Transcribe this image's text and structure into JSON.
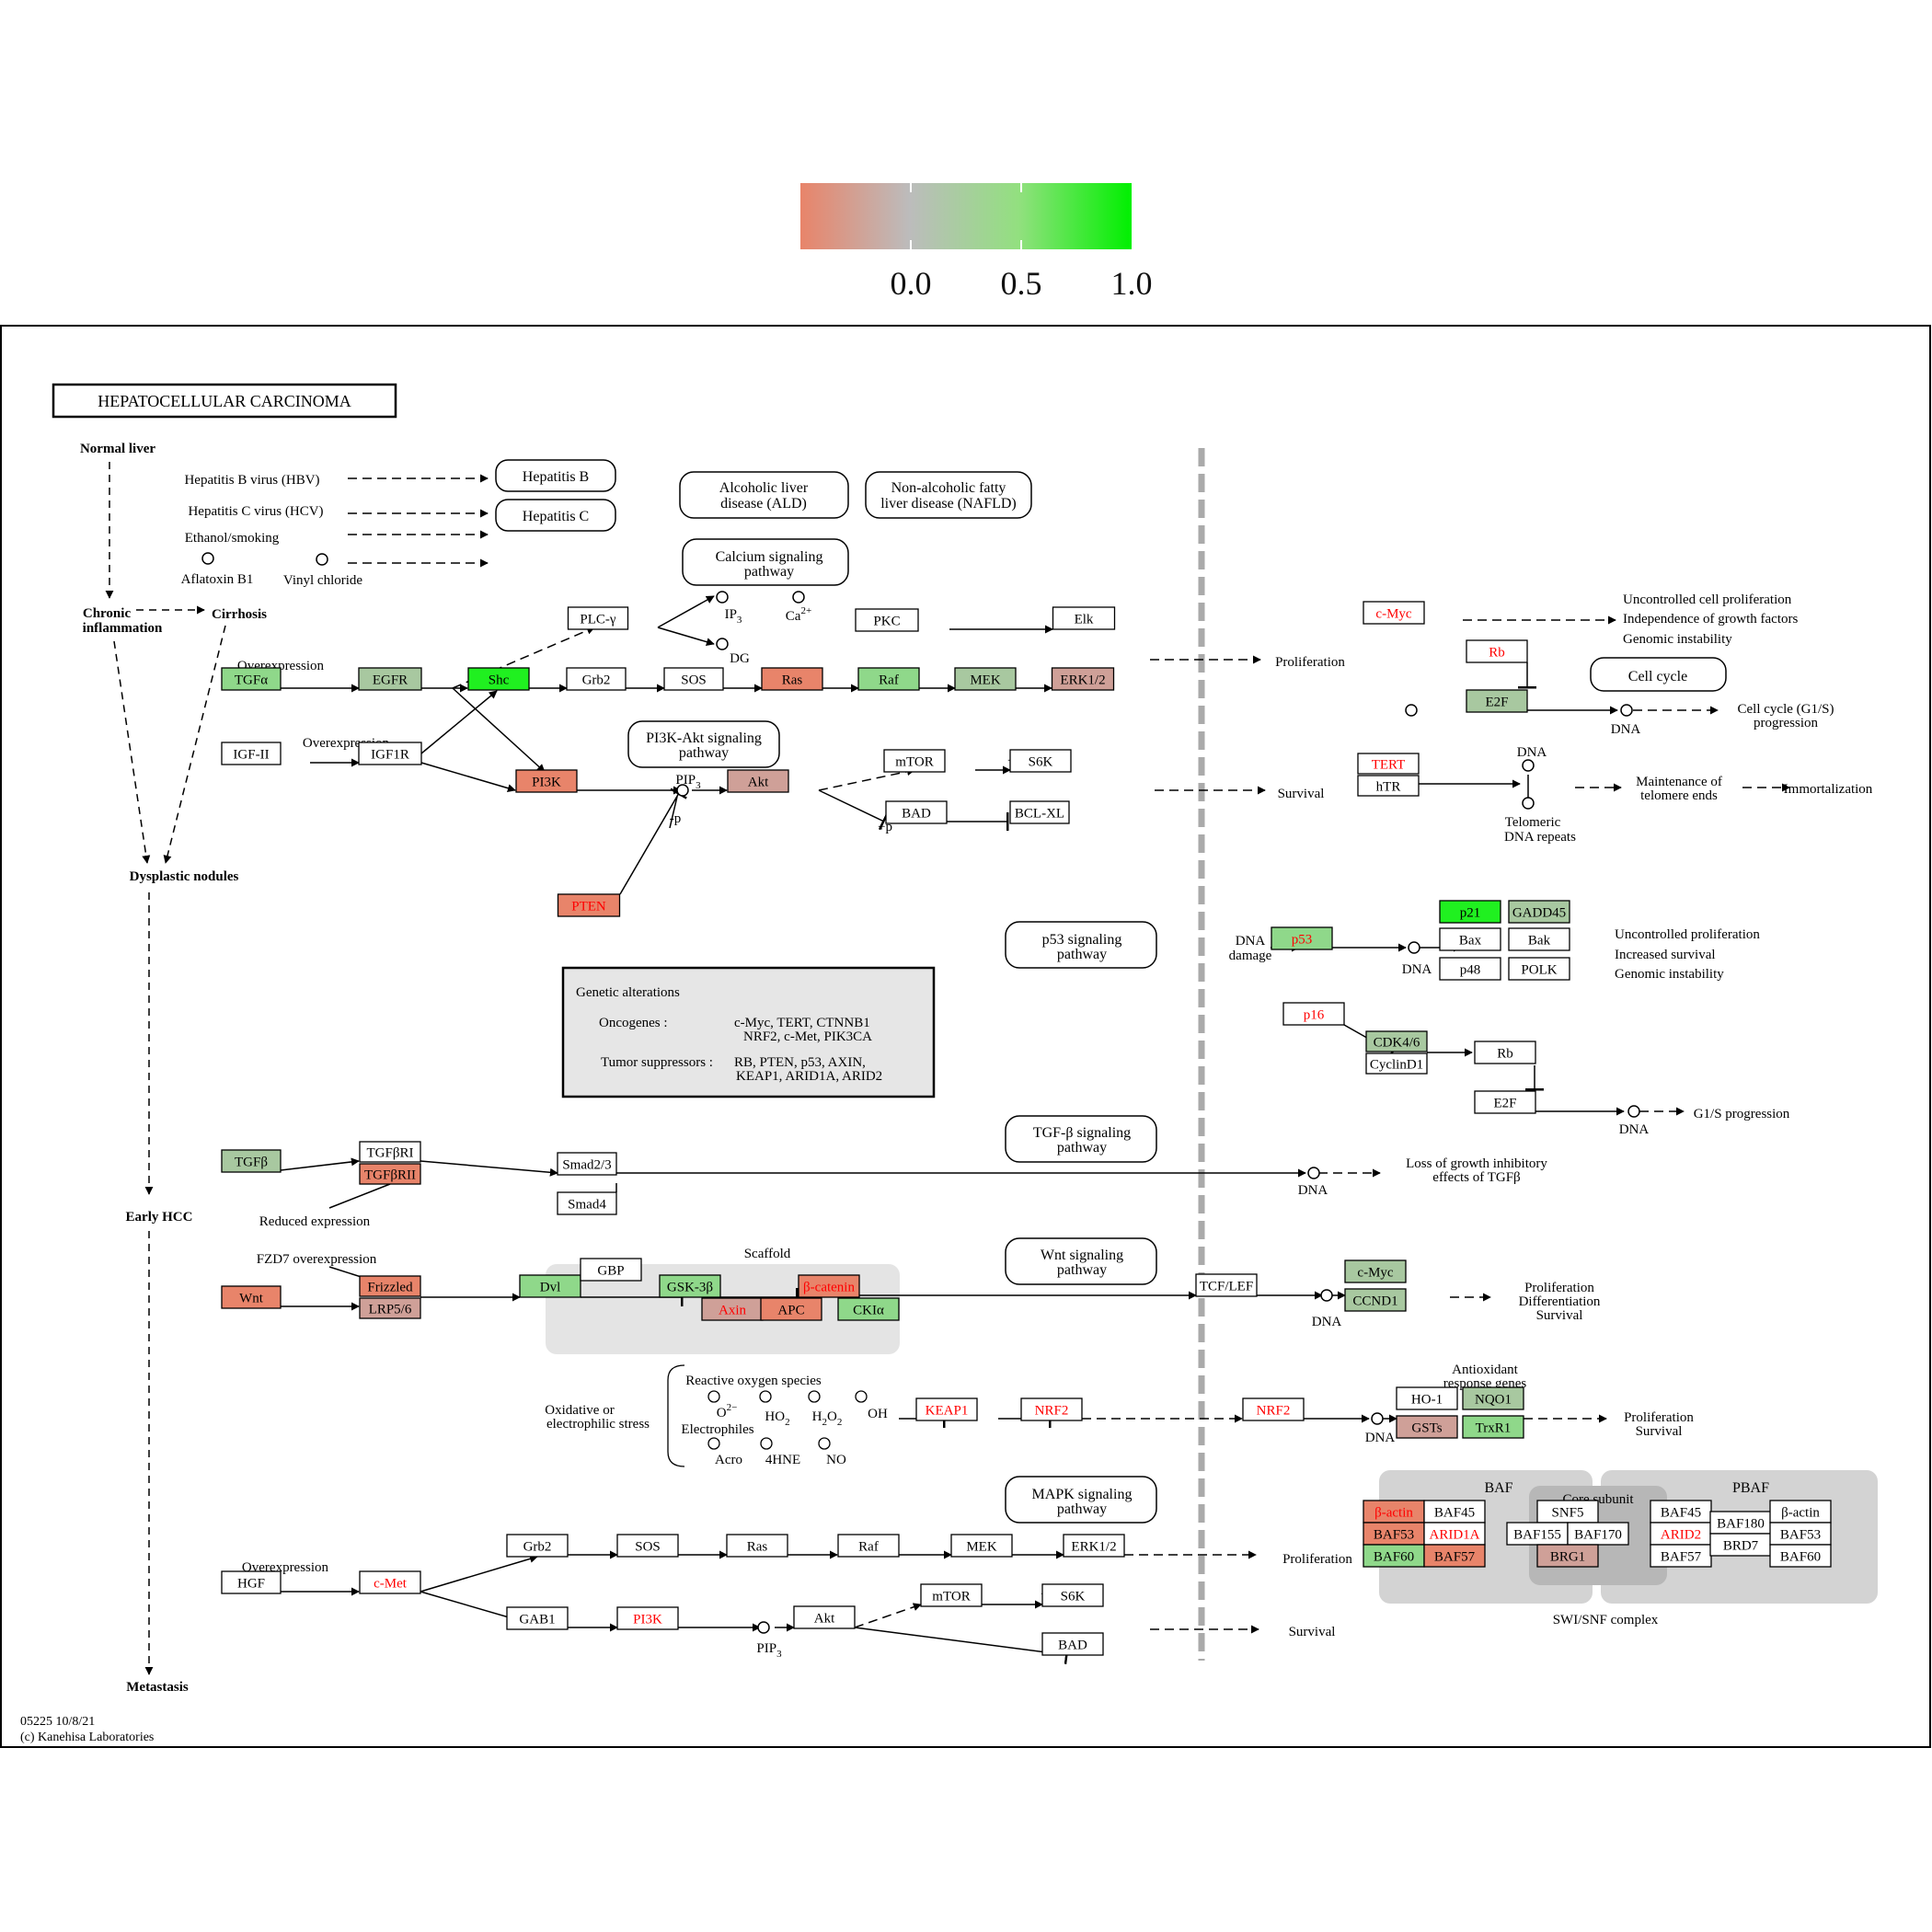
{
  "title": "HEPATOCELLULAR CARCINOMA",
  "footer": {
    "code": "05225 10/8/21",
    "copyright": "(c) Kanehisa Laboratories"
  },
  "legend": {
    "ticks": [
      "0.0",
      "0.5",
      "1.0"
    ],
    "gradient": [
      "#e8846a",
      "#bcbcbc",
      "#92e07f",
      "#00f000"
    ]
  },
  "colors": {
    "red": "#e8846a",
    "pink": "#cfa098",
    "gray_green": "#a8c8a0",
    "green": "#8fd88a",
    "bright_green": "#20f020",
    "white": "#ffffff",
    "alt_text": "#ff0000",
    "gray_panel": "#d6d6d6",
    "dark_panel": "#bdbdbd",
    "genetic_box": "#e6e6e6"
  },
  "stages": [
    "Normal liver",
    "Chronic inflammation",
    "Cirrhosis",
    "Dysplastic nodules",
    "Early HCC",
    "Metastasis"
  ],
  "etiology": {
    "hbv": "Hepatitis B virus (HBV)",
    "hcv": "Hepatitis C virus (HCV)",
    "ethanol": "Ethanol/smoking",
    "aflatoxin": "Aflatoxin B1",
    "vinyl": "Vinyl chloride"
  },
  "pathway_links": {
    "hep_b": "Hepatitis B",
    "hep_c": "Hepatitis C",
    "ald": "Alcoholic liver disease (ALD)",
    "nafld": "Non-alcoholic fatty liver disease (NAFLD)",
    "calcium": "Calcium signaling pathway",
    "pi3k_akt": "PI3K-Akt signaling pathway",
    "p53": "p53 signaling pathway",
    "tgfb": "TGF-β signaling pathway",
    "wnt": "Wnt signaling pathway",
    "mapk": "MAPK signaling pathway",
    "cell_cycle": "Cell cycle"
  },
  "genes": {
    "tgfa": "TGFα",
    "egfr": "EGFR",
    "shc": "Shc",
    "grb2": "Grb2",
    "sos": "SOS",
    "ras": "Ras",
    "raf": "Raf",
    "mek": "MEK",
    "erk": "ERK1/2",
    "plcg": "PLC-γ",
    "pkc": "PKC",
    "elk": "Elk",
    "igf2": "IGF-II",
    "igf1r": "IGF1R",
    "pi3k": "PI3K",
    "akt": "Akt",
    "mtor": "mTOR",
    "s6k": "S6K",
    "bad": "BAD",
    "bclxl": "BCL-XL",
    "pten": "PTEN",
    "tgfb": "TGFβ",
    "tgfbr1": "TGFβRI",
    "tgfbr2": "TGFβRII",
    "smad23": "Smad2/3",
    "smad4": "Smad4",
    "wnt": "Wnt",
    "frizzled": "Frizzled",
    "lrp": "LRP5/6",
    "dvl": "Dvl",
    "gbp": "GBP",
    "gsk": "GSK-3β",
    "bcat": "β-catenin",
    "axin": "Axin",
    "apc": "APC",
    "ckia": "CKIα",
    "tcf": "TCF/LEF",
    "keap1": "KEAP1",
    "nrf2": "NRF2",
    "nrf2b": "NRF2",
    "hgf": "HGF",
    "cmet": "c-Met",
    "grb2b": "Grb2",
    "sosb": "SOS",
    "rasb": "Ras",
    "rafb": "Raf",
    "mekb": "MEK",
    "erkb": "ERK1/2",
    "gab1": "GAB1",
    "pi3kb": "PI3K",
    "aktb": "Akt",
    "mtorb": "mTOR",
    "s6kb": "S6K",
    "badb": "BAD",
    "cmyc": "c-Myc",
    "rb": "Rb",
    "e2f": "E2F",
    "tert": "TERT",
    "htr": "hTR",
    "p53": "p53",
    "p21": "p21",
    "gadd45": "GADD45",
    "bax": "Bax",
    "bak": "Bak",
    "p48": "p48",
    "polk": "POLK",
    "p16": "p16",
    "cdk46": "CDK4/6",
    "cyclind1": "CyclinD1",
    "rb2": "Rb",
    "e2f2": "E2F",
    "cmyc2": "c-Myc",
    "ccnd1": "CCND1",
    "ho1": "HO-1",
    "nqo1": "NQO1",
    "gsts": "GSTs",
    "trxr1": "TrxR1",
    "bactin": "β-actin",
    "baf45": "BAF45",
    "baf53": "BAF53",
    "arid1a": "ARID1A",
    "baf60": "BAF60",
    "baf57": "BAF57",
    "snf5": "SNF5",
    "baf155": "BAF155",
    "baf170": "BAF170",
    "brg1": "BRG1",
    "baf45b": "BAF45",
    "bactinb": "β-actin",
    "arid2": "ARID2",
    "baf180": "BAF180",
    "baf53b": "BAF53",
    "baf57b": "BAF57",
    "brd7": "BRD7",
    "baf60b": "BAF60"
  },
  "labels": {
    "overexp1": "Overexpression",
    "overexp2": "Overexpression",
    "overexp3": "Overexpression",
    "reduced": "Reduced expression",
    "fzd7": "FZD7 overexpression",
    "scaffold": "Scaffold",
    "proliferation1": "Proliferation",
    "survival1": "Survival",
    "proliferation2": "Proliferation",
    "survival2": "Survival",
    "ip3": "IP3",
    "ca": "Ca2+",
    "dg": "DG",
    "pip3": "PIP3",
    "pip3b": "PIP3",
    "p": "+p",
    "mp": "-p",
    "uncontrolled1": "Uncontrolled cell proliferation",
    "independence": "Independence of growth factors",
    "genomic1": "Genomic instability",
    "cell_cycle_g1s": "Cell cycle (G1/S)",
    "progression": "progression",
    "dna": "DNA",
    "telomere1": "Maintenance of",
    "telomere2": "telomere ends",
    "immortal": "Immortalization",
    "telomeric1": "Telomeric",
    "telomeric2": "DNA repeats",
    "dna_damage1": "DNA",
    "dna_damage2": "damage",
    "uncontrolled2": "Uncontrolled proliferation",
    "increased": "Increased survival",
    "genomic2": "Genomic instability",
    "g1s": "G1/S progression",
    "loss1": "Loss of growth inhibitory",
    "loss2": "effects of TGFβ",
    "prolif_diff1": "Proliferation",
    "prolif_diff2": "Differentiation",
    "prolif_diff3": "Survival",
    "antiox1": "Antioxidant",
    "antiox2": "response genes",
    "prolif_surv1": "Proliferation",
    "prolif_surv2": "Survival",
    "oxidative1": "Oxidative or",
    "oxidative2": "electrophilic stress",
    "ros": "Reactive oxygen species",
    "o2": "O2−",
    "ho2": "HO2",
    "h2o2": "H2O2",
    "oh": "OH",
    "electrophiles": "Electrophiles",
    "acro": "Acro",
    "hne": "4HNE",
    "no": "NO",
    "baf": "BAF",
    "core": "Core subunit",
    "pbaf": "PBAF",
    "swisnf": "SWI/SNF complex"
  },
  "genetic_alterations": {
    "header": "Genetic alterations",
    "oncogenes_label": "Oncogenes :",
    "oncogenes_line1": "c-Myc, TERT, CTNNB1",
    "oncogenes_line2": "NRF2, c-Met, PIK3CA",
    "tumor_label": "Tumor suppressors :",
    "tumor_line1": "RB, PTEN, p53, AXIN,",
    "tumor_line2": "KEAP1, ARID1A, ARID2"
  }
}
